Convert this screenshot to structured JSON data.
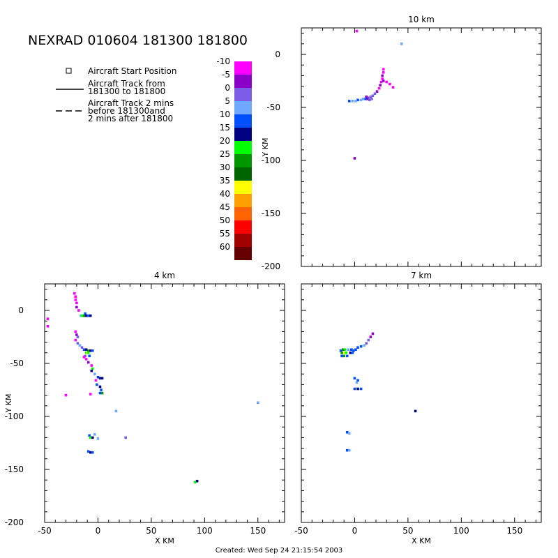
{
  "title": "NEXRAD 010604 181300 181800",
  "footer": "Created: Wed Sep 24 21:15:54 2003",
  "legend": {
    "start": "Aircraft Start Position",
    "track_line1": "Aircraft Track from",
    "track_line2": "181300 to 181800",
    "track2_line1": "Aircraft Track 2 mins",
    "track2_line2": "before 181300and",
    "track2_line3": "2 mins after 181800"
  },
  "colorbar": {
    "labels": [
      "-10",
      "-5",
      "0",
      "5",
      "10",
      "15",
      "20",
      "25",
      "30",
      "35",
      "40",
      "45",
      "50",
      "55",
      "60"
    ],
    "colors": [
      "#ff00ff",
      "#8b00c8",
      "#7b5ce6",
      "#6fa8ff",
      "#0050ff",
      "#000080",
      "#00ff00",
      "#009600",
      "#006400",
      "#ffff00",
      "#ffa000",
      "#ff6400",
      "#ff0000",
      "#a00000",
      "#640000"
    ]
  },
  "chart_data": [
    {
      "type": "heatmap",
      "title": "10 km",
      "xlabel": "",
      "ylabel": "Y KM",
      "xlim": [
        -50,
        175
      ],
      "ylim": [
        -200,
        25
      ],
      "xticks": [],
      "yticks": [
        0,
        -50,
        -100,
        -150,
        -200
      ],
      "cells": [
        [
          2,
          22,
          "#ff00ff"
        ],
        [
          44,
          10,
          "#6fa8ff"
        ],
        [
          27,
          -14,
          "#ff00ff"
        ],
        [
          27,
          -17,
          "#ff00ff"
        ],
        [
          26,
          -20,
          "#8b00c8"
        ],
        [
          26,
          -23,
          "#ff00ff"
        ],
        [
          27,
          -25,
          "#8b00c8"
        ],
        [
          30,
          -26,
          "#ff00ff"
        ],
        [
          33,
          -28,
          "#ff00ff"
        ],
        [
          36,
          -31,
          "#ff00ff"
        ],
        [
          25,
          -26,
          "#ff00ff"
        ],
        [
          24,
          -29,
          "#8b00c8"
        ],
        [
          23,
          -32,
          "#ff00ff"
        ],
        [
          21,
          -35,
          "#8b00c8"
        ],
        [
          19,
          -37,
          "#7b5ce6"
        ],
        [
          17,
          -39,
          "#7b5ce6"
        ],
        [
          15,
          -40,
          "#7b5ce6"
        ],
        [
          13,
          -41,
          "#7b5ce6"
        ],
        [
          12,
          -42,
          "#8b00c8"
        ],
        [
          14,
          -43,
          "#7b5ce6"
        ],
        [
          16,
          -42,
          "#7b5ce6"
        ],
        [
          11,
          -40,
          "#8b00c8"
        ],
        [
          10,
          -42,
          "#0050ff"
        ],
        [
          8,
          -42,
          "#6fa8ff"
        ],
        [
          6,
          -43,
          "#6fa8ff"
        ],
        [
          3,
          -43,
          "#0050ff"
        ],
        [
          1,
          -44,
          "#6fa8ff"
        ],
        [
          -2,
          -44,
          "#6fa8ff"
        ],
        [
          -5,
          -44,
          "#0050ff"
        ],
        [
          0,
          -98,
          "#8b00c8"
        ]
      ]
    },
    {
      "type": "heatmap",
      "title": "4 km",
      "xlabel": "X KM",
      "ylabel": "Y KM",
      "xlim": [
        -50,
        175
      ],
      "ylim": [
        -200,
        25
      ],
      "xticks": [
        -50,
        0,
        50,
        100,
        150
      ],
      "yticks": [
        0,
        -50,
        -100,
        -150,
        -200
      ],
      "cells": [
        [
          -22,
          16,
          "#ff00ff"
        ],
        [
          -21,
          13,
          "#ff00ff"
        ],
        [
          -21,
          10,
          "#ff00ff"
        ],
        [
          -20,
          7,
          "#ff00ff"
        ],
        [
          -20,
          3,
          "#8b00c8"
        ],
        [
          -18,
          0,
          "#ff00ff"
        ],
        [
          -47,
          -8,
          "#ff00ff"
        ],
        [
          -47,
          -15,
          "#ff00ff"
        ],
        [
          -12,
          -3,
          "#0050ff"
        ],
        [
          -16,
          -5,
          "#6fa8ff"
        ],
        [
          -15,
          -5,
          "#00ff00"
        ],
        [
          -13,
          -5,
          "#009600"
        ],
        [
          -11,
          -5,
          "#000080"
        ],
        [
          -9,
          -5,
          "#0050ff"
        ],
        [
          -7,
          -5,
          "#000080"
        ],
        [
          -21,
          -20,
          "#ff00ff"
        ],
        [
          -20,
          -23,
          "#8b00c8"
        ],
        [
          -19,
          -25,
          "#7b5ce6"
        ],
        [
          -21,
          -28,
          "#ff00ff"
        ],
        [
          -19,
          -31,
          "#7b5ce6"
        ],
        [
          -17,
          -33,
          "#6fa8ff"
        ],
        [
          -15,
          -35,
          "#7b5ce6"
        ],
        [
          -13,
          -37,
          "#0050ff"
        ],
        [
          -11,
          -37,
          "#000080"
        ],
        [
          -9,
          -38,
          "#009600"
        ],
        [
          -7,
          -38,
          "#000080"
        ],
        [
          -5,
          -38,
          "#0050ff"
        ],
        [
          -11,
          -40,
          "#00ff00"
        ],
        [
          -10,
          -40,
          "#ffff00"
        ],
        [
          -9,
          -40,
          "#00ff00"
        ],
        [
          -12,
          -43,
          "#7b5ce6"
        ],
        [
          -8,
          -43,
          "#0050ff"
        ],
        [
          -11,
          -46,
          "#ff00ff"
        ],
        [
          -9,
          -49,
          "#8b00c8"
        ],
        [
          -13,
          -44,
          "#ff00ff"
        ],
        [
          -6,
          -52,
          "#ff00ff"
        ],
        [
          -5,
          -55,
          "#00ff00"
        ],
        [
          -6,
          -57,
          "#000080"
        ],
        [
          -3,
          -60,
          "#6fa8ff"
        ],
        [
          0,
          -63,
          "#0050ff"
        ],
        [
          2,
          -64,
          "#000080"
        ],
        [
          4,
          -64,
          "#000080"
        ],
        [
          -2,
          -66,
          "#ff00ff"
        ],
        [
          -1,
          -70,
          "#0050ff"
        ],
        [
          2,
          -72,
          "#000080"
        ],
        [
          3,
          -75,
          "#0050ff"
        ],
        [
          4,
          -78,
          "#009600"
        ],
        [
          2,
          -78,
          "#0050ff"
        ],
        [
          -7,
          -79,
          "#ff00ff"
        ],
        [
          -30,
          -80,
          "#ff00ff"
        ],
        [
          17,
          -95,
          "#6fa8ff"
        ],
        [
          -8,
          -118,
          "#0050ff"
        ],
        [
          -7,
          -120,
          "#00ff00"
        ],
        [
          -5,
          -120,
          "#000080"
        ],
        [
          -3,
          -117,
          "#6fa8ff"
        ],
        [
          0,
          -121,
          "#6fa8ff"
        ],
        [
          26,
          -120,
          "#7b5ce6"
        ],
        [
          -9,
          -133,
          "#0050ff"
        ],
        [
          -7,
          -134,
          "#000080"
        ],
        [
          -5,
          -134,
          "#0050ff"
        ],
        [
          91,
          -162,
          "#00ff00"
        ],
        [
          93,
          -161,
          "#000080"
        ],
        [
          150,
          -87,
          "#6fa8ff"
        ]
      ]
    },
    {
      "type": "heatmap",
      "title": "7 km",
      "xlabel": "X KM",
      "ylabel": "",
      "xlim": [
        -50,
        175
      ],
      "ylim": [
        -200,
        25
      ],
      "xticks": [
        -50,
        0,
        50,
        100,
        150
      ],
      "yticks": [],
      "cells": [
        [
          17,
          -22,
          "#8b00c8"
        ],
        [
          15,
          -25,
          "#8b00c8"
        ],
        [
          13,
          -28,
          "#7b5ce6"
        ],
        [
          11,
          -31,
          "#7b5ce6"
        ],
        [
          9,
          -33,
          "#6fa8ff"
        ],
        [
          6,
          -34,
          "#0050ff"
        ],
        [
          3,
          -35,
          "#0050ff"
        ],
        [
          1,
          -37,
          "#0050ff"
        ],
        [
          -1,
          -38,
          "#0050ff"
        ],
        [
          -3,
          -37,
          "#0050ff"
        ],
        [
          -6,
          -37,
          "#6fa8ff"
        ],
        [
          -9,
          -37,
          "#00ff00"
        ],
        [
          -11,
          -37,
          "#009600"
        ],
        [
          -13,
          -38,
          "#0050ff"
        ],
        [
          -10,
          -40,
          "#ffff00"
        ],
        [
          -12,
          -40,
          "#009600"
        ],
        [
          -8,
          -40,
          "#00ff00"
        ],
        [
          -10,
          -43,
          "#009600"
        ],
        [
          -12,
          -43,
          "#0050ff"
        ],
        [
          -7,
          -43,
          "#0050ff"
        ],
        [
          -4,
          -40,
          "#000080"
        ],
        [
          -2,
          -40,
          "#0050ff"
        ],
        [
          0,
          -64,
          "#0050ff"
        ],
        [
          3,
          -66,
          "#0050ff"
        ],
        [
          2,
          -68,
          "#6fa8ff"
        ],
        [
          0,
          -74,
          "#0050ff"
        ],
        [
          3,
          -74,
          "#000080"
        ],
        [
          6,
          -74,
          "#0050ff"
        ],
        [
          -7,
          -115,
          "#0050ff"
        ],
        [
          -5,
          -116,
          "#6fa8ff"
        ],
        [
          -7,
          -132,
          "#0050ff"
        ],
        [
          -5,
          -132,
          "#6fa8ff"
        ],
        [
          57,
          -95,
          "#000080"
        ]
      ]
    }
  ]
}
